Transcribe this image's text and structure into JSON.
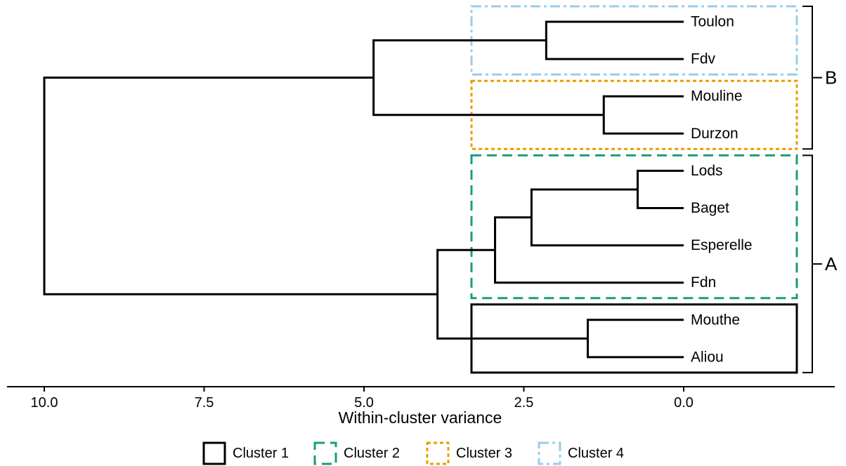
{
  "chart_data": {
    "type": "dendrogram",
    "orientation": "horizontal",
    "xlabel": "Within-cluster variance",
    "xlim": [
      10.0,
      -2.3
    ],
    "x_ticks": [
      10.0,
      7.5,
      5.0,
      2.5,
      0.0
    ],
    "x_tick_labels": [
      "10.0",
      "7.5",
      "5.0",
      "2.5",
      "0.0"
    ],
    "leaves": [
      "Toulon",
      "Fdv",
      "Mouline",
      "Durzon",
      "Lods",
      "Baget",
      "Esperelle",
      "Fdn",
      "Mouthe",
      "Aliou"
    ],
    "merges": [
      {
        "left": "Toulon",
        "right": "Fdv",
        "height": 2.15
      },
      {
        "left": "Mouline",
        "right": "Durzon",
        "height": 1.25
      },
      {
        "left": "Lods",
        "right": "Baget",
        "height": 0.72
      },
      {
        "left": "Mouthe",
        "right": "Aliou",
        "height": 1.5
      },
      {
        "left": "Toulon+Fdv",
        "right": "Mouline+Durzon",
        "height": 4.85
      },
      {
        "left": "Lods+Baget",
        "right": "Esperelle",
        "height": 2.38
      },
      {
        "left": "Lods+Baget+Esperelle",
        "right": "Fdn",
        "height": 2.95
      },
      {
        "left": "Lods+Baget+Esperelle+Fdn",
        "right": "Mouthe+Aliou",
        "height": 3.85
      },
      {
        "left": "Toulon+Fdv+Mouline+Durzon",
        "right": "Lods+Baget+Esperelle+Fdn+Mouthe+Aliou",
        "height": 10.0
      }
    ],
    "clusters": [
      {
        "name": "Cluster 1",
        "members": [
          "Mouthe",
          "Aliou"
        ],
        "color": "#000000",
        "dash": "solid"
      },
      {
        "name": "Cluster 2",
        "members": [
          "Lods",
          "Baget",
          "Esperelle",
          "Fdn"
        ],
        "color": "#1a9e77",
        "dash": "dashed"
      },
      {
        "name": "Cluster 3",
        "members": [
          "Mouline",
          "Durzon"
        ],
        "color": "#e69f00",
        "dash": "dotted"
      },
      {
        "name": "Cluster 4",
        "members": [
          "Toulon",
          "Fdv"
        ],
        "color": "#99ccee",
        "dash": "dashdot"
      }
    ],
    "groups": [
      {
        "label": "B",
        "members": [
          "Toulon",
          "Fdv",
          "Mouline",
          "Durzon"
        ]
      },
      {
        "label": "A",
        "members": [
          "Lods",
          "Baget",
          "Esperelle",
          "Fdn",
          "Mouthe",
          "Aliou"
        ]
      }
    ],
    "legend": {
      "placement": "bottom",
      "entries": [
        "Cluster 1",
        "Cluster 2",
        "Cluster 3",
        "Cluster 4"
      ]
    }
  }
}
